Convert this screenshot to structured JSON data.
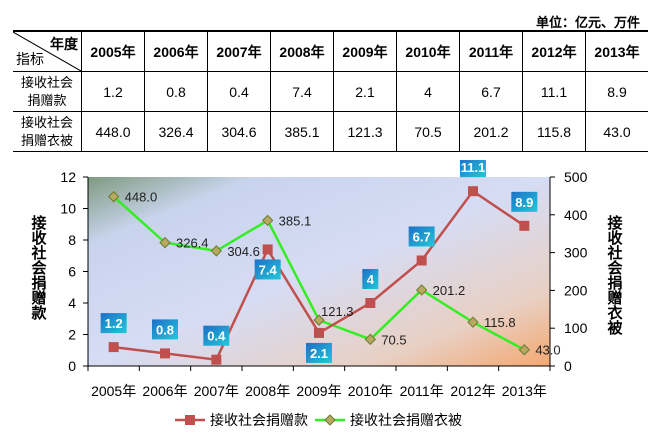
{
  "unit": "单位：亿元、万件",
  "table": {
    "corner_top": "年度",
    "corner_bottom": "指标",
    "years": [
      "2005年",
      "2006年",
      "2007年",
      "2008年",
      "2009年",
      "2010年",
      "2011年",
      "2012年",
      "2013年"
    ],
    "rows": [
      {
        "label_line1": "接收社会",
        "label_line2": "捐赠款",
        "values": [
          "1.2",
          "0.8",
          "0.4",
          "7.4",
          "2.1",
          "4",
          "6.7",
          "11.1",
          "8.9"
        ]
      },
      {
        "label_line1": "接收社会",
        "label_line2": "捐赠衣被",
        "values": [
          "448.0",
          "326.4",
          "304.6",
          "385.1",
          "121.3",
          "70.5",
          "201.2",
          "115.8",
          "43.0"
        ]
      }
    ]
  },
  "chart_data": {
    "type": "line",
    "categories": [
      "2005年",
      "2006年",
      "2007年",
      "2008年",
      "2009年",
      "2010年",
      "2011年",
      "2012年",
      "2013年"
    ],
    "series": [
      {
        "name": "接收社会捐赠款",
        "axis": "left",
        "color": "#c0504d",
        "values": [
          1.2,
          0.8,
          0.4,
          7.4,
          2.1,
          4,
          6.7,
          11.1,
          8.9
        ],
        "labels": [
          "1.2",
          "0.8",
          "0.4",
          "7.4",
          "2.1",
          "4",
          "6.7",
          "11.1",
          "8.9"
        ]
      },
      {
        "name": "接收社会捐赠衣被",
        "axis": "right",
        "color": "#33ee22",
        "values": [
          448.0,
          326.4,
          304.6,
          385.1,
          121.3,
          70.5,
          201.2,
          115.8,
          43.0
        ],
        "labels": [
          "448.0",
          "326.4",
          "304.6",
          "385.1",
          "121.3",
          "70.5",
          "201.2",
          "115.8",
          "43.0"
        ]
      }
    ],
    "ylabel": "接收社会捐赠款",
    "y2label": "接收社会捐赠衣被",
    "ylim": [
      0,
      12
    ],
    "y2lim": [
      0,
      500
    ],
    "yticks": [
      "0",
      "2",
      "4",
      "6",
      "8",
      "10",
      "12"
    ],
    "y2ticks": [
      "0",
      "100",
      "200",
      "300",
      "400",
      "500"
    ],
    "legend": "bottom"
  }
}
